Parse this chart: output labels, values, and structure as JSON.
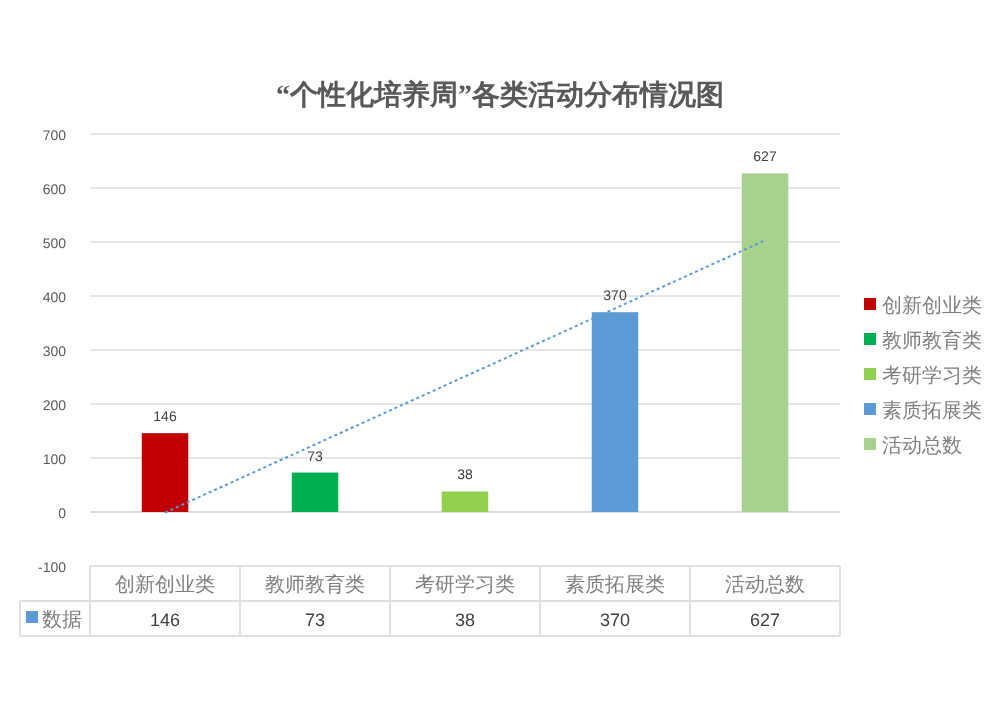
{
  "chart_data": {
    "type": "bar",
    "title": "“个性化培养周”各类活动分布情况图",
    "categories": [
      "创新创业类",
      "教师教育类",
      "考研学习类",
      "素质拓展类",
      "活动总数"
    ],
    "series": [
      {
        "name": "创新创业类",
        "color": "#c00000",
        "values": [
          146,
          null,
          null,
          null,
          null
        ],
        "value_labels": [
          "146",
          null,
          null,
          null,
          null
        ]
      },
      {
        "name": "教师教育类",
        "color": "#00b050",
        "values": [
          null,
          73,
          null,
          null,
          null
        ],
        "value_labels": [
          null,
          "73",
          null,
          null,
          null
        ]
      },
      {
        "name": "考研学习类",
        "color": "#92d050",
        "values": [
          null,
          null,
          38,
          null,
          null
        ],
        "value_labels": [
          null,
          null,
          "38",
          null,
          null
        ]
      },
      {
        "name": "素质拓展类",
        "color": "#5b9bd5",
        "values": [
          null,
          null,
          null,
          370,
          null
        ],
        "value_labels": [
          null,
          null,
          null,
          "370",
          null
        ]
      },
      {
        "name": "活动总数",
        "color": "#a9d18e",
        "values": [
          null,
          null,
          null,
          null,
          627
        ],
        "value_labels": [
          null,
          null,
          null,
          null,
          "627"
        ]
      },
      {
        "type": "line",
        "color": "#5b9bd5",
        "line_style": "dotted",
        "values": [
          -1,
          125,
          251,
          377,
          503
        ]
      }
    ],
    "ylim": [
      -100,
      700
    ],
    "yticks": [
      -100,
      0,
      100,
      200,
      300,
      400,
      500,
      600,
      700
    ],
    "grid": "y",
    "legend": "right",
    "annotations": [
      "数据",
      "146",
      "73",
      "38",
      "370",
      "627"
    ]
  }
}
